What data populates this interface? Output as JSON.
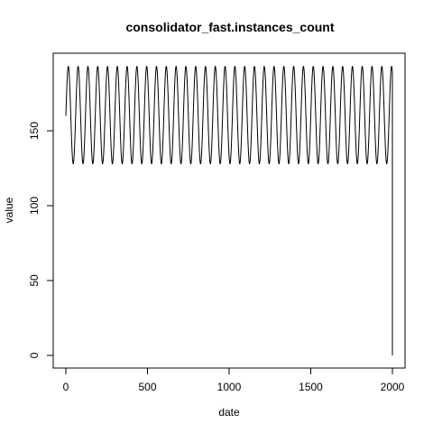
{
  "chart_data": {
    "type": "line",
    "title": "consolidator_fast.instances_count",
    "xlabel": "date",
    "ylabel": "value",
    "xlim": [
      0,
      2000
    ],
    "ylim": [
      0,
      193
    ],
    "xticks": [
      0,
      500,
      1000,
      1500,
      2000
    ],
    "yticks": [
      0,
      50,
      100,
      150
    ],
    "grid": false,
    "series": [
      {
        "pattern": "periodic",
        "x_start": 0,
        "x_end": 2000,
        "period": 60,
        "start_value": 160,
        "min": 128,
        "max": 193,
        "final_value": 0
      }
    ]
  }
}
